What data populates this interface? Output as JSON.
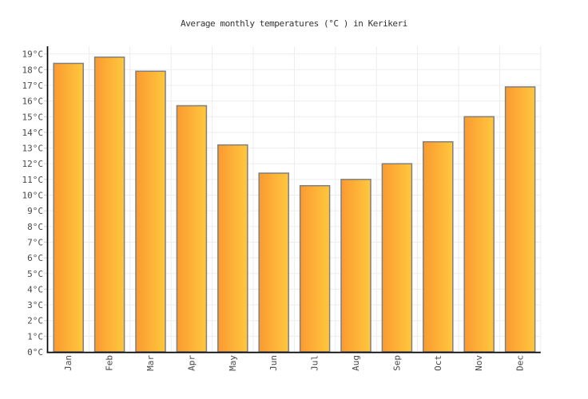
{
  "page": {
    "title": "Average monthly temperatures (°C ) in Kerikeri"
  },
  "chart_data": {
    "type": "bar",
    "title": "Average monthly temperatures (°C ) in Kerikeri",
    "categories": [
      "Jan",
      "Feb",
      "Mar",
      "Apr",
      "May",
      "Jun",
      "Jul",
      "Aug",
      "Sep",
      "Oct",
      "Nov",
      "Dec"
    ],
    "values": [
      18.4,
      18.8,
      17.9,
      15.7,
      13.2,
      11.4,
      10.6,
      11.0,
      12.0,
      13.4,
      15.0,
      16.9
    ],
    "unit": "°C",
    "xlabel": "",
    "ylabel": "",
    "ylim": [
      0,
      19
    ],
    "ytick_step": 1,
    "ytick_suffix": "°C",
    "grid": true,
    "legend": "none",
    "colors": {
      "bar_gradient_start": "#FB9A31",
      "bar_gradient_end": "#FFC83E",
      "bar_border": "#7F7F7F",
      "gridline": "#EDEDED",
      "tick": "#CCCCCC",
      "axis": "#000000",
      "label": "#4A4A4A",
      "title": "#333333",
      "background": "#FFFFFF"
    }
  }
}
